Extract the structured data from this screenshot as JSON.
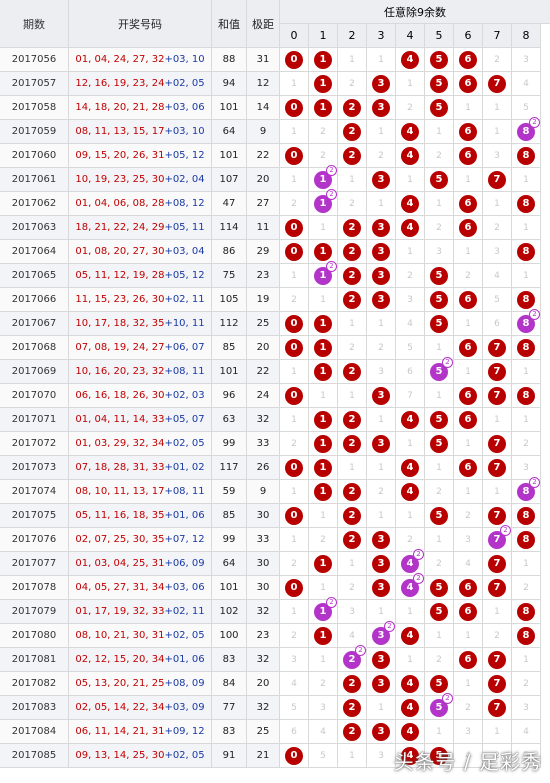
{
  "header": {
    "period": "期数",
    "numbers": "开奖号码",
    "sum": "和值",
    "span": "极距",
    "group": "任意除9余数",
    "digits": [
      "0",
      "1",
      "2",
      "3",
      "4",
      "5",
      "6",
      "7",
      "8"
    ]
  },
  "rows": [
    {
      "period": "2017056",
      "red": "01, 04, 24, 27, 32",
      "blue": "+03, 10",
      "sum": "88",
      "span": "31",
      "cells": [
        "b",
        "b",
        "1",
        "1",
        "b",
        "b",
        "b",
        "2",
        "3"
      ]
    },
    {
      "period": "2017057",
      "red": "12, 16, 19, 23, 24",
      "blue": "+02, 05",
      "sum": "94",
      "span": "12",
      "cells": [
        "1",
        "b",
        "2",
        "b",
        "1",
        "b",
        "b",
        "b",
        "4"
      ]
    },
    {
      "period": "2017058",
      "red": "14, 18, 20, 21, 28",
      "blue": "+03, 06",
      "sum": "101",
      "span": "14",
      "cells": [
        "b",
        "b",
        "b",
        "b",
        "2",
        "b",
        "1",
        "1",
        "5"
      ]
    },
    {
      "period": "2017059",
      "red": "08, 11, 13, 15, 17",
      "blue": "+03, 10",
      "sum": "64",
      "span": "9",
      "cells": [
        "1",
        "2",
        "b",
        "1",
        "b",
        "1",
        "b",
        "1",
        "p2"
      ]
    },
    {
      "period": "2017060",
      "red": "09, 15, 20, 26, 31",
      "blue": "+05, 12",
      "sum": "101",
      "span": "22",
      "cells": [
        "b",
        "2",
        "b",
        "2",
        "b",
        "2",
        "b",
        "3",
        "b"
      ]
    },
    {
      "period": "2017061",
      "red": "10, 19, 23, 25, 30",
      "blue": "+02, 04",
      "sum": "107",
      "span": "20",
      "cells": [
        "1",
        "p2",
        "1",
        "b",
        "1",
        "b",
        "1",
        "b",
        "1"
      ]
    },
    {
      "period": "2017062",
      "red": "01, 04, 06, 08, 28",
      "blue": "+08, 12",
      "sum": "47",
      "span": "27",
      "cells": [
        "2",
        "p2",
        "2",
        "1",
        "b",
        "1",
        "b",
        "1",
        "b"
      ]
    },
    {
      "period": "2017063",
      "red": "18, 21, 22, 24, 29",
      "blue": "+05, 11",
      "sum": "114",
      "span": "11",
      "cells": [
        "b",
        "1",
        "b",
        "b",
        "b",
        "2",
        "b",
        "2",
        "1"
      ]
    },
    {
      "period": "2017064",
      "red": "01, 08, 20, 27, 30",
      "blue": "+03, 04",
      "sum": "86",
      "span": "29",
      "cells": [
        "b",
        "b",
        "b",
        "b",
        "1",
        "3",
        "1",
        "3",
        "b"
      ]
    },
    {
      "period": "2017065",
      "red": "05, 11, 12, 19, 28",
      "blue": "+05, 12",
      "sum": "75",
      "span": "23",
      "cells": [
        "1",
        "p2",
        "b",
        "b",
        "2",
        "b",
        "2",
        "4",
        "1"
      ]
    },
    {
      "period": "2017066",
      "red": "11, 15, 23, 26, 30",
      "blue": "+02, 11",
      "sum": "105",
      "span": "19",
      "cells": [
        "2",
        "1",
        "b",
        "b",
        "3",
        "b",
        "b",
        "5",
        "b"
      ]
    },
    {
      "period": "2017067",
      "red": "10, 17, 18, 32, 35",
      "blue": "+10, 11",
      "sum": "112",
      "span": "25",
      "cells": [
        "b",
        "b",
        "1",
        "1",
        "4",
        "b",
        "1",
        "6",
        "p2"
      ]
    },
    {
      "period": "2017068",
      "red": "07, 08, 19, 24, 27",
      "blue": "+06, 07",
      "sum": "85",
      "span": "20",
      "cells": [
        "b",
        "b",
        "2",
        "2",
        "5",
        "1",
        "b",
        "b",
        "b"
      ]
    },
    {
      "period": "2017069",
      "red": "10, 16, 20, 23, 32",
      "blue": "+08, 11",
      "sum": "101",
      "span": "22",
      "cells": [
        "1",
        "b",
        "b",
        "3",
        "6",
        "p2",
        "1",
        "b",
        "1"
      ]
    },
    {
      "period": "2017070",
      "red": "06, 16, 18, 26, 30",
      "blue": "+02, 03",
      "sum": "96",
      "span": "24",
      "cells": [
        "b",
        "1",
        "1",
        "b",
        "7",
        "1",
        "b",
        "b",
        "b"
      ]
    },
    {
      "period": "2017071",
      "red": "01, 04, 11, 14, 33",
      "blue": "+05, 07",
      "sum": "63",
      "span": "32",
      "cells": [
        "1",
        "b",
        "b",
        "1",
        "b",
        "b",
        "b",
        "1",
        "1"
      ]
    },
    {
      "period": "2017072",
      "red": "01, 03, 29, 32, 34",
      "blue": "+02, 05",
      "sum": "99",
      "span": "33",
      "cells": [
        "2",
        "b",
        "b",
        "b",
        "1",
        "b",
        "1",
        "b",
        "2"
      ]
    },
    {
      "period": "2017073",
      "red": "07, 18, 28, 31, 33",
      "blue": "+01, 02",
      "sum": "117",
      "span": "26",
      "cells": [
        "b",
        "b",
        "1",
        "1",
        "b",
        "1",
        "b",
        "b",
        "3"
      ]
    },
    {
      "period": "2017074",
      "red": "08, 10, 11, 13, 17",
      "blue": "+08, 11",
      "sum": "59",
      "span": "9",
      "cells": [
        "1",
        "b",
        "b",
        "2",
        "b",
        "2",
        "1",
        "1",
        "p2"
      ]
    },
    {
      "period": "2017075",
      "red": "05, 11, 16, 18, 35",
      "blue": "+01, 06",
      "sum": "85",
      "span": "30",
      "cells": [
        "b",
        "1",
        "b",
        "1",
        "1",
        "b",
        "2",
        "b",
        "b"
      ]
    },
    {
      "period": "2017076",
      "red": "02, 07, 25, 30, 35",
      "blue": "+07, 12",
      "sum": "99",
      "span": "33",
      "cells": [
        "1",
        "2",
        "b",
        "b",
        "2",
        "1",
        "3",
        "p2",
        "b"
      ]
    },
    {
      "period": "2017077",
      "red": "01, 03, 04, 25, 31",
      "blue": "+06, 09",
      "sum": "64",
      "span": "30",
      "cells": [
        "2",
        "b",
        "1",
        "b",
        "p2",
        "2",
        "4",
        "b",
        "1"
      ]
    },
    {
      "period": "2017078",
      "red": "04, 05, 27, 31, 34",
      "blue": "+03, 06",
      "sum": "101",
      "span": "30",
      "cells": [
        "b",
        "1",
        "2",
        "b",
        "p2",
        "b",
        "b",
        "b",
        "2"
      ]
    },
    {
      "period": "2017079",
      "red": "01, 17, 19, 32, 33",
      "blue": "+02, 11",
      "sum": "102",
      "span": "32",
      "cells": [
        "1",
        "p2",
        "3",
        "1",
        "1",
        "b",
        "b",
        "1",
        "b"
      ]
    },
    {
      "period": "2017080",
      "red": "08, 10, 21, 30, 31",
      "blue": "+02, 05",
      "sum": "100",
      "span": "23",
      "cells": [
        "2",
        "b",
        "4",
        "p2",
        "b",
        "1",
        "1",
        "2",
        "b"
      ]
    },
    {
      "period": "2017081",
      "red": "02, 12, 15, 20, 34",
      "blue": "+01, 06",
      "sum": "83",
      "span": "32",
      "cells": [
        "3",
        "1",
        "p2",
        "b",
        "1",
        "2",
        "b",
        "b",
        "1"
      ]
    },
    {
      "period": "2017082",
      "red": "05, 13, 20, 21, 25",
      "blue": "+08, 09",
      "sum": "84",
      "span": "20",
      "cells": [
        "4",
        "2",
        "b",
        "b",
        "b",
        "b",
        "1",
        "b",
        "2"
      ]
    },
    {
      "period": "2017083",
      "red": "02, 05, 14, 22, 34",
      "blue": "+03, 09",
      "sum": "77",
      "span": "32",
      "cells": [
        "5",
        "3",
        "b",
        "1",
        "b",
        "p2",
        "2",
        "b",
        "3"
      ]
    },
    {
      "period": "2017084",
      "red": "06, 11, 14, 21, 31",
      "blue": "+09, 12",
      "sum": "83",
      "span": "25",
      "cells": [
        "6",
        "4",
        "b",
        "b",
        "b",
        "1",
        "3",
        "1",
        "4"
      ]
    },
    {
      "period": "2017085",
      "red": "09, 13, 14, 25, 30",
      "blue": "+02, 05",
      "sum": "91",
      "span": "21",
      "cells": [
        "b",
        "5",
        "1",
        "3",
        "b",
        "b",
        "4",
        "2",
        "5"
      ]
    }
  ],
  "watermark": "头条号 / 足彩秀",
  "colors": {
    "red": "#b80000",
    "purple": "#b334c8",
    "header": "#eceef2"
  }
}
